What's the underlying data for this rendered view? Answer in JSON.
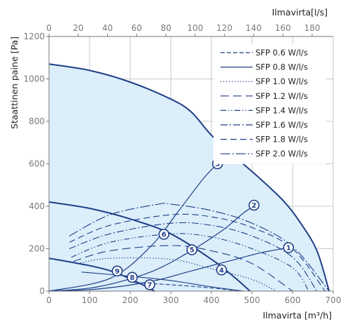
{
  "chart_data": {
    "type": "line",
    "title": "",
    "x_top_label": "Ilmavirta[l/s]",
    "xlabel": "Ilmavirta [m³/h]",
    "ylabel": "Staattinen paine  [Pa]",
    "xlim": [
      0,
      700
    ],
    "ylim": [
      0,
      1200
    ],
    "x2lim": [
      0,
      194.4
    ],
    "x_ticks": [
      0,
      100,
      200,
      300,
      400,
      500,
      600,
      700
    ],
    "x_tick_labels": [
      "0",
      "100",
      "200",
      "300",
      "400",
      "500",
      "600",
      "700"
    ],
    "x2_ticks": [
      0,
      20,
      40,
      60,
      80,
      100,
      120,
      140,
      160,
      180
    ],
    "x2_tick_labels": [
      "0",
      "20",
      "40",
      "60",
      "80",
      "100",
      "120",
      "140",
      "160",
      "180"
    ],
    "y_ticks": [
      0,
      200,
      400,
      600,
      800,
      1000,
      1200
    ],
    "y_tick_labels": [
      "0",
      "200",
      "400",
      "600",
      "800",
      "1000",
      "1200"
    ],
    "grid": true,
    "legend_position": "top-right",
    "colors": {
      "curve": "#1f3f87",
      "fill": "#dbeefa",
      "grid": "#b9b9b9",
      "marker_fill": "#ffffff"
    },
    "fan_curves": [
      {
        "name": "max",
        "points": [
          [
            0,
            1070
          ],
          [
            100,
            1040
          ],
          [
            200,
            985
          ],
          [
            300,
            905
          ],
          [
            350,
            845
          ],
          [
            400,
            735
          ],
          [
            460,
            630
          ],
          [
            520,
            530
          ],
          [
            580,
            420
          ],
          [
            620,
            320
          ],
          [
            660,
            190
          ],
          [
            690,
            0
          ]
        ],
        "fill": true
      },
      {
        "name": "mid",
        "points": [
          [
            0,
            420
          ],
          [
            100,
            390
          ],
          [
            200,
            340
          ],
          [
            300,
            270
          ],
          [
            400,
            150
          ],
          [
            460,
            60
          ],
          [
            495,
            0
          ]
        ]
      },
      {
        "name": "low",
        "points": [
          [
            0,
            155
          ],
          [
            100,
            120
          ],
          [
            160,
            90
          ],
          [
            220,
            40
          ],
          [
            260,
            0
          ]
        ]
      }
    ],
    "system_curves": [
      {
        "name": "sys-1",
        "points": [
          [
            0,
            0
          ],
          [
            120,
            10
          ],
          [
            250,
            45
          ],
          [
            350,
            95
          ],
          [
            450,
            145
          ],
          [
            520,
            180
          ],
          [
            590,
            205
          ]
        ]
      },
      {
        "name": "sys-2",
        "points": [
          [
            0,
            0
          ],
          [
            120,
            20
          ],
          [
            250,
            90
          ],
          [
            350,
            190
          ],
          [
            430,
            290
          ],
          [
            480,
            370
          ],
          [
            510,
            405
          ]
        ]
      },
      {
        "name": "sys-3",
        "points": [
          [
            0,
            0
          ],
          [
            150,
            60
          ],
          [
            250,
            210
          ],
          [
            320,
            380
          ],
          [
            380,
            530
          ],
          [
            415,
            600
          ]
        ]
      }
    ],
    "sfp_lines": [
      {
        "name": "SFP 0.6 W/l/s",
        "dash": "6,3",
        "points": [
          [
            210,
            40
          ],
          [
            300,
            30
          ],
          [
            400,
            15
          ],
          [
            470,
            0
          ]
        ]
      },
      {
        "name": "SFP 0.8 W/l/s",
        "dash": "",
        "points": [
          [
            80,
            90
          ],
          [
            200,
            70
          ],
          [
            300,
            50
          ],
          [
            400,
            20
          ],
          [
            480,
            0
          ]
        ]
      },
      {
        "name": "SFP 1.0 W/l/s",
        "dash": "1.5,2.5",
        "points": [
          [
            70,
            130
          ],
          [
            150,
            155
          ],
          [
            300,
            150
          ],
          [
            400,
            105
          ],
          [
            500,
            55
          ],
          [
            560,
            0
          ]
        ]
      },
      {
        "name": "SFP 1.2 W/l/s",
        "dash": "12,6",
        "points": [
          [
            60,
            140
          ],
          [
            150,
            190
          ],
          [
            300,
            215
          ],
          [
            400,
            190
          ],
          [
            500,
            130
          ],
          [
            600,
            0
          ]
        ]
      },
      {
        "name": "SFP 1.4 W/l/s",
        "dash": "8,3,1.5,3,1.5,3",
        "points": [
          [
            55,
            160
          ],
          [
            150,
            230
          ],
          [
            300,
            270
          ],
          [
            400,
            255
          ],
          [
            500,
            200
          ],
          [
            600,
            110
          ],
          [
            640,
            0
          ]
        ]
      },
      {
        "name": "SFP 1.6 W/l/s",
        "dash": "10,3,2,3",
        "points": [
          [
            50,
            200
          ],
          [
            150,
            270
          ],
          [
            300,
            320
          ],
          [
            400,
            310
          ],
          [
            500,
            260
          ],
          [
            600,
            160
          ],
          [
            660,
            0
          ]
        ]
      },
      {
        "name": "SFP 1.8 W/l/s",
        "dash": "9,5",
        "points": [
          [
            50,
            230
          ],
          [
            150,
            310
          ],
          [
            300,
            360
          ],
          [
            400,
            350
          ],
          [
            500,
            300
          ],
          [
            600,
            200
          ],
          [
            680,
            0
          ]
        ]
      },
      {
        "name": "SFP 2.0 W/l/s",
        "dash": "14,3,2,3",
        "points": [
          [
            50,
            260
          ],
          [
            150,
            360
          ],
          [
            270,
            410
          ],
          [
            300,
            410
          ],
          [
            400,
            380
          ],
          [
            500,
            320
          ],
          [
            600,
            210
          ],
          [
            690,
            0
          ]
        ]
      }
    ],
    "markers": [
      {
        "label": "1",
        "x": 590,
        "y": 205
      },
      {
        "label": "2",
        "x": 505,
        "y": 405
      },
      {
        "label": "3",
        "x": 415,
        "y": 600
      },
      {
        "label": "4",
        "x": 425,
        "y": 100
      },
      {
        "label": "5",
        "x": 352,
        "y": 195
      },
      {
        "label": "6",
        "x": 283,
        "y": 268
      },
      {
        "label": "7",
        "x": 248,
        "y": 30
      },
      {
        "label": "8",
        "x": 205,
        "y": 65
      },
      {
        "label": "9",
        "x": 168,
        "y": 95
      }
    ]
  }
}
